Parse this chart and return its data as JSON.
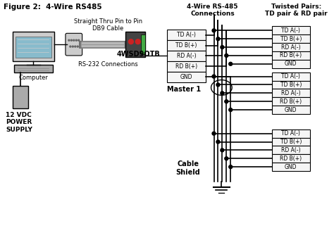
{
  "title": "Figure 2:  4-Wire RS485",
  "header_4wire": "4-Wire RS-485\nConnections",
  "header_twisted": "Twisted Pairs:\nTD pair & RD pair",
  "device_label": "4WSD9OTB",
  "master_label": "Master 1",
  "cable_shield_label": "Cable\nShield",
  "rs232_label": "RS-232 Connections",
  "db9_label": "Straight Thru Pin to Pin\nDB9 Cable",
  "computer_label": "Computer",
  "power_label": "12 VDC\nPOWER\nSUPPLY",
  "signals": [
    "TD A(-)",
    "TD B(+)",
    "RD A(-)",
    "RD B(+)",
    "GND"
  ],
  "bg_color": "#ffffff",
  "line_color": "#000000",
  "box_bg": "#eeeeee"
}
